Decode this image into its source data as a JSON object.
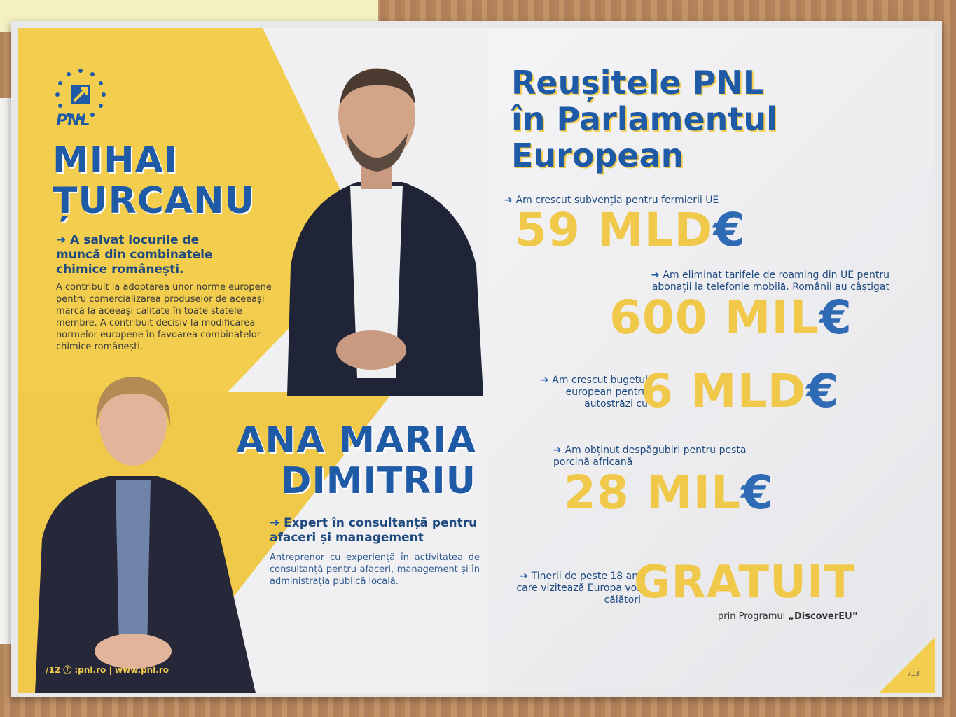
{
  "left_page": {
    "logo_text": "PNL",
    "candidate1": {
      "name_line1": "MIHAI",
      "name_line2": "ȚURCANU",
      "headline": "A salvat locurile de muncă din combinatele chimice românești.",
      "description": "A contribuit la adoptarea unor norme europene pentru comercializarea produselor de aceeași marcă la aceeași calitate în toate statele membre. A contribuit decisiv la modificarea normelor europene în favoarea combinatelor chimice românești."
    },
    "candidate2": {
      "name_line1": "ANA MARIA",
      "name_line2": "DIMITRIU",
      "headline": "Expert în consultanță pentru afaceri și management",
      "description": "Antreprenor cu experiență în activitatea de consultanță pentru afaceri, management și în administrația publică locală."
    },
    "footer": {
      "page_number": "/12",
      "facebook": ":pnl.ro",
      "separator": "|",
      "website": "www.pnl.ro"
    }
  },
  "right_page": {
    "title_line1": "Reușitele PNL",
    "title_line2": "în Parlamentul",
    "title_line3": "European",
    "stats": [
      {
        "label": "Am crescut subvenția pentru fermierii UE",
        "value": "59 MLD",
        "currency": "€"
      },
      {
        "label": "Am eliminat tarifele de roaming din UE pentru abonații la telefonie mobilă. Românii au câștigat",
        "value": "600 MIL",
        "currency": "€"
      },
      {
        "label": "Am crescut bugetul european pentru autostrăzi cu",
        "value": "6 MLD",
        "currency": "€"
      },
      {
        "label": "Am obținut despăgubiri pentru pesta porcină africană",
        "value": "28 MIL",
        "currency": "€"
      },
      {
        "label": "Tinerii de peste 18 ani care vizitează Europa vor călători",
        "value": "GRATUIT",
        "currency": ""
      }
    ],
    "program_prefix": "prin Programul",
    "program_name": "„DiscoverEU”",
    "page_number": "/13"
  },
  "colors": {
    "brand_blue": "#1f5aa6",
    "brand_yellow": "#f0c94a"
  }
}
